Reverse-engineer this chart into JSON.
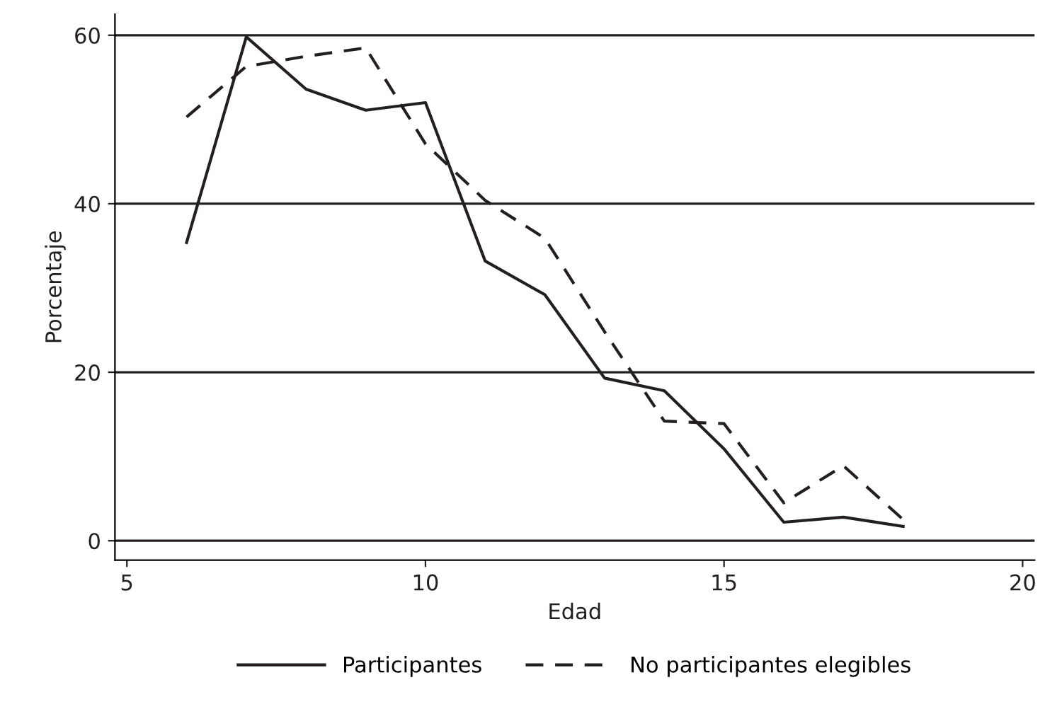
{
  "chart_data": {
    "type": "line",
    "xlabel": "Edad",
    "ylabel": "Porcentaje",
    "x": [
      6,
      7,
      8,
      9,
      10,
      11,
      12,
      13,
      14,
      15,
      16,
      17,
      18
    ],
    "series": [
      {
        "name": "Participantes",
        "color": "#231f20",
        "line_style": "solid",
        "values": [
          35.4,
          59.8,
          53.6,
          51.1,
          52,
          33.2,
          29.2,
          19.3,
          17.8,
          10.9,
          2.2,
          2.8,
          1.7
        ]
      },
      {
        "name": "No participantes elegibles",
        "color": "#231f20",
        "line_style": "dashed",
        "values": [
          50.3,
          56.3,
          57.5,
          58.5,
          47.1,
          40.4,
          35.9,
          24.8,
          14.2,
          13.9,
          4.5,
          8.9,
          2.5
        ]
      }
    ],
    "xlim": [
      4.8,
      20.2
    ],
    "ylim": [
      -2.3,
      62.5
    ],
    "xticks": [
      5,
      10,
      15,
      20
    ],
    "yticks": [
      0,
      20,
      40,
      60
    ],
    "grid": "y",
    "legend": "bottom",
    "marker": "none"
  }
}
